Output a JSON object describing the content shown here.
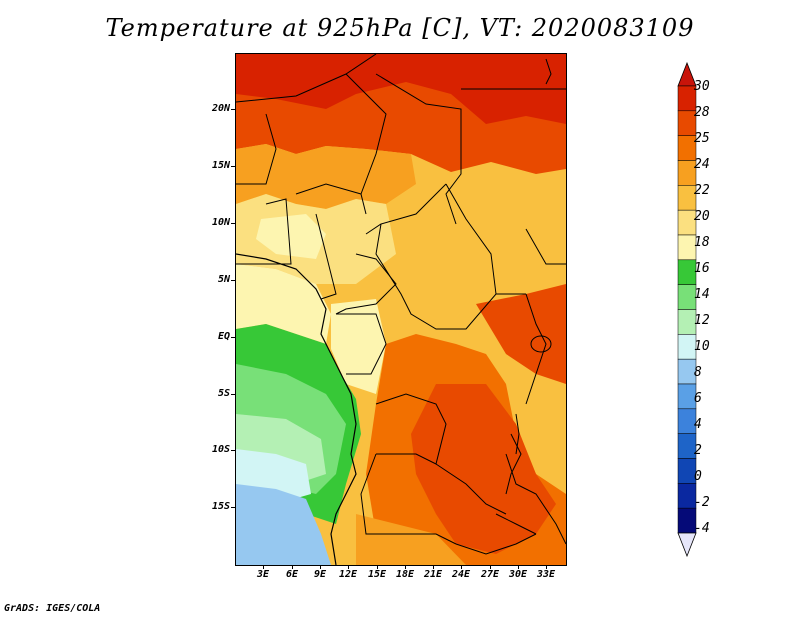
{
  "title": "Temperature at 925hPa [C], VT: 2020083109",
  "footer": "GrADS: IGES/COLA",
  "map": {
    "lat_labels": [
      "20N",
      "15N",
      "10N",
      "5N",
      "EQ",
      "5S",
      "10S",
      "15S"
    ],
    "lon_labels": [
      "3E",
      "6E",
      "9E",
      "12E",
      "15E",
      "18E",
      "21E",
      "24E",
      "27E",
      "30E",
      "33E"
    ]
  },
  "colorbar": {
    "labels": [
      "30",
      "28",
      "25",
      "24",
      "22",
      "20",
      "18",
      "16",
      "14",
      "12",
      "10",
      "8",
      "6",
      "4",
      "2",
      "0",
      "-2",
      "-4"
    ],
    "colors": [
      "#d82200",
      "#e84a00",
      "#f27000",
      "#f7a020",
      "#f9c040",
      "#fbe080",
      "#fdf5b0",
      "#37c837",
      "#78e078",
      "#b4f0b4",
      "#d2f5f5",
      "#96c8f0",
      "#5aa0e6",
      "#3c82dc",
      "#1e64c8",
      "#1046b4",
      "#0a28a0",
      "#050a78"
    ],
    "top_arrow_color": "#c8140a",
    "bottom_arrow_color": "#e6e6fa"
  }
}
